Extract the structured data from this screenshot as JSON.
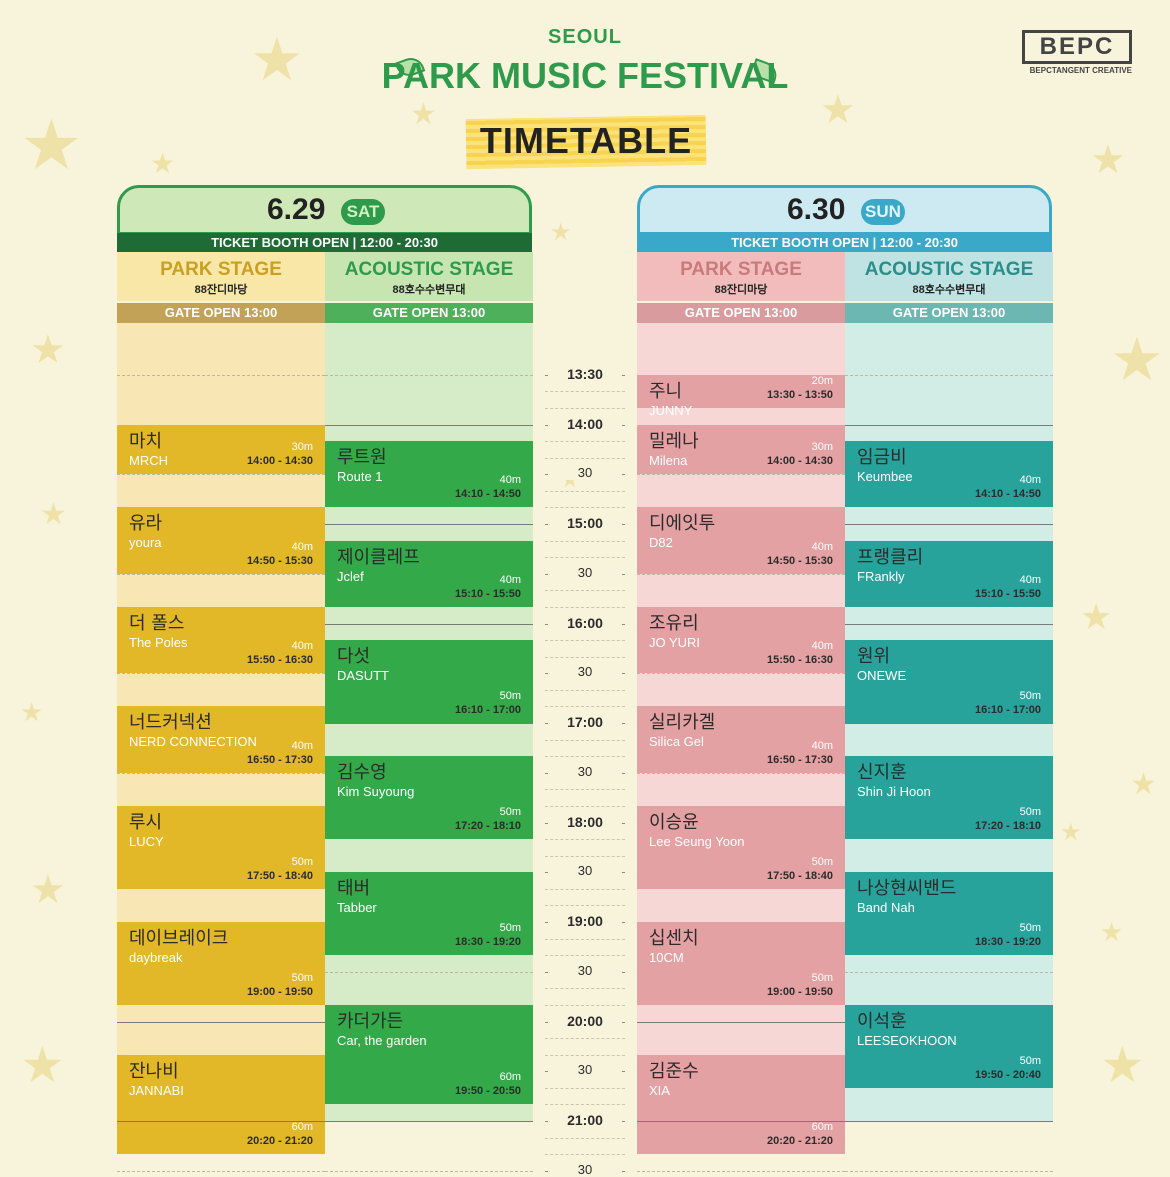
{
  "header": {
    "city": "SEOUL",
    "festival": "PARK MUSIC FESTIVAL",
    "timetable": "TIMETABLE",
    "logo": "BEPC",
    "logo_sub": "BEPCTANGENT CREATIVE"
  },
  "colors": {
    "background": "#f8f4dc",
    "day1_header": "#2e9a4b",
    "day2_header": "#3aa9c9",
    "park_day1": "#e2b829",
    "acoustic_day1": "#34a94a",
    "park_day2": "#e4a1a3",
    "acoustic_day2": "#28a39c"
  },
  "days": [
    {
      "date": "6.29",
      "weekday": "SAT",
      "ticket_booth": "TICKET BOOTH OPEN | 12:00 - 20:30",
      "stages": [
        {
          "name": "PARK STAGE",
          "venue": "88잔디마당",
          "gate": "GATE OPEN 13:00",
          "slots": [
            {
              "ko": "마치",
              "en": "MRCH",
              "duration": "30m",
              "time": "14:00 - 14:30"
            },
            {
              "ko": "유라",
              "en": "youra",
              "duration": "40m",
              "time": "14:50 - 15:30"
            },
            {
              "ko": "더 폴스",
              "en": "The Poles",
              "duration": "40m",
              "time": "15:50 - 16:30"
            },
            {
              "ko": "너드커넥션",
              "en": "NERD CONNECTION",
              "duration": "40m",
              "time": "16:50 - 17:30"
            },
            {
              "ko": "루시",
              "en": "LUCY",
              "duration": "50m",
              "time": "17:50 - 18:40"
            },
            {
              "ko": "데이브레이크",
              "en": "daybreak",
              "duration": "50m",
              "time": "19:00 - 19:50"
            },
            {
              "ko": "잔나비",
              "en": "JANNABI",
              "duration": "60m",
              "time": "20:20 - 21:20"
            }
          ]
        },
        {
          "name": "ACOUSTIC STAGE",
          "venue": "88호수수변무대",
          "gate": "GATE OPEN 13:00",
          "slots": [
            {
              "ko": "루트원",
              "en": "Route 1",
              "duration": "40m",
              "time": "14:10 - 14:50"
            },
            {
              "ko": "제이클레프",
              "en": "Jclef",
              "duration": "40m",
              "time": "15:10 - 15:50"
            },
            {
              "ko": "다섯",
              "en": "DASUTT",
              "duration": "50m",
              "time": "16:10 - 17:00"
            },
            {
              "ko": "김수영",
              "en": "Kim Suyoung",
              "duration": "50m",
              "time": "17:20 - 18:10"
            },
            {
              "ko": "태버",
              "en": "Tabber",
              "duration": "50m",
              "time": "18:30 - 19:20"
            },
            {
              "ko": "카더가든",
              "en": "Car, the garden",
              "duration": "60m",
              "time": "19:50 - 20:50"
            }
          ]
        }
      ]
    },
    {
      "date": "6.30",
      "weekday": "SUN",
      "ticket_booth": "TICKET BOOTH OPEN | 12:00 - 20:30",
      "stages": [
        {
          "name": "PARK STAGE",
          "venue": "88잔디마당",
          "gate": "GATE OPEN 13:00",
          "slots": [
            {
              "ko": "주니",
              "en": "JUNNY",
              "duration": "20m",
              "time": "13:30 - 13:50"
            },
            {
              "ko": "밀레나",
              "en": "Milena",
              "duration": "30m",
              "time": "14:00 - 14:30"
            },
            {
              "ko": "디에잇투",
              "en": "D82",
              "duration": "40m",
              "time": "14:50 - 15:30"
            },
            {
              "ko": "조유리",
              "en": "JO YURI",
              "duration": "40m",
              "time": "15:50 - 16:30"
            },
            {
              "ko": "실리카겔",
              "en": "Silica Gel",
              "duration": "40m",
              "time": "16:50 - 17:30"
            },
            {
              "ko": "이승윤",
              "en": "Lee Seung Yoon",
              "duration": "50m",
              "time": "17:50 - 18:40"
            },
            {
              "ko": "십센치",
              "en": "10CM",
              "duration": "50m",
              "time": "19:00 - 19:50"
            },
            {
              "ko": "김준수",
              "en": "XIA",
              "duration": "60m",
              "time": "20:20 - 21:20"
            }
          ]
        },
        {
          "name": "ACOUSTIC STAGE",
          "venue": "88호수수변무대",
          "gate": "GATE OPEN 13:00",
          "slots": [
            {
              "ko": "임금비",
              "en": "Keumbee",
              "duration": "40m",
              "time": "14:10 - 14:50"
            },
            {
              "ko": "프랭클리",
              "en": "FRankly",
              "duration": "40m",
              "time": "15:10 - 15:50"
            },
            {
              "ko": "원위",
              "en": "ONEWE",
              "duration": "50m",
              "time": "16:10 - 17:00"
            },
            {
              "ko": "신지훈",
              "en": "Shin Ji Hoon",
              "duration": "50m",
              "time": "17:20 - 18:10"
            },
            {
              "ko": "나상현씨밴드",
              "en": "Band Nah",
              "duration": "50m",
              "time": "18:30 - 19:20"
            },
            {
              "ko": "이석훈",
              "en": "LEESEOKHOON",
              "duration": "50m",
              "time": "19:50 - 20:40"
            }
          ]
        }
      ]
    }
  ],
  "time_axis": [
    "13:30",
    "14:00",
    "30",
    "15:00",
    "30",
    "16:00",
    "30",
    "17:00",
    "30",
    "18:00",
    "30",
    "19:00",
    "30",
    "20:00",
    "30",
    "21:00",
    "30"
  ]
}
